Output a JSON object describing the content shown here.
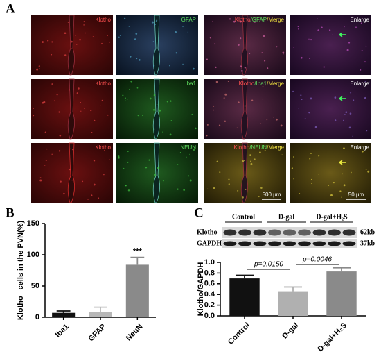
{
  "figure": {
    "panel_labels": [
      "A",
      "B",
      "C"
    ],
    "microscopy": {
      "rows": [
        {
          "channel_labels": [
            "Klotho",
            "GFAP"
          ],
          "merge_label": [
            "Klotho",
            "/GFAP",
            "/Merge"
          ],
          "enlarge_label": "Enlarge"
        },
        {
          "channel_labels": [
            "Klotho",
            "Iba1"
          ],
          "merge_label": [
            "Klotho",
            "/Iba1",
            "/Merge"
          ],
          "enlarge_label": "Enlarge"
        },
        {
          "channel_labels": [
            "Klotho",
            "NEUN"
          ],
          "merge_label": [
            "Klotho",
            "/NEUN",
            "/Merge"
          ],
          "enlarge_label": "Enlarge"
        }
      ],
      "scale_bars": [
        "500 μm",
        "50 μm"
      ]
    },
    "blot": {
      "groups": [
        "Control",
        "D-gal",
        "D-gal+H₂S"
      ],
      "bands": [
        "Klotho",
        "GAPDH"
      ],
      "sizes": [
        "62kb",
        "37kb"
      ]
    }
  },
  "chart_data": [
    {
      "type": "bar",
      "y_label": "Klotho⁺ cells in the PVN(%)",
      "categories": [
        "Iba1",
        "GFAP",
        "NeuN"
      ],
      "values": [
        7,
        8,
        84
      ],
      "errors": [
        3,
        8,
        12
      ],
      "colors": [
        "#111111",
        "#b8b8b8",
        "#8a8a8a"
      ],
      "ylim": [
        0,
        150
      ],
      "yticks": [
        0,
        50,
        100,
        150
      ],
      "annotation": "***"
    },
    {
      "type": "bar",
      "y_label": "Klotho/GAPDH",
      "categories": [
        "Control",
        "D-gal",
        "D-gal+H₂S"
      ],
      "values": [
        0.7,
        0.46,
        0.83
      ],
      "errors": [
        0.06,
        0.08,
        0.07
      ],
      "colors": [
        "#111111",
        "#b0b0b0",
        "#8a8a8a"
      ],
      "ylim": [
        0,
        1.0
      ],
      "yticks": [
        {
          "value": 0,
          "label": "0.0"
        },
        {
          "value": 0.2,
          "label": "0.2"
        },
        {
          "value": 0.4,
          "label": "0.4"
        },
        {
          "value": 0.6,
          "label": "0.6"
        },
        {
          "value": 0.8,
          "label": "0.8"
        },
        {
          "value": 1.0,
          "label": "1.0"
        }
      ],
      "annotations": [
        "p=0.0150",
        "p=0.0046"
      ]
    }
  ]
}
